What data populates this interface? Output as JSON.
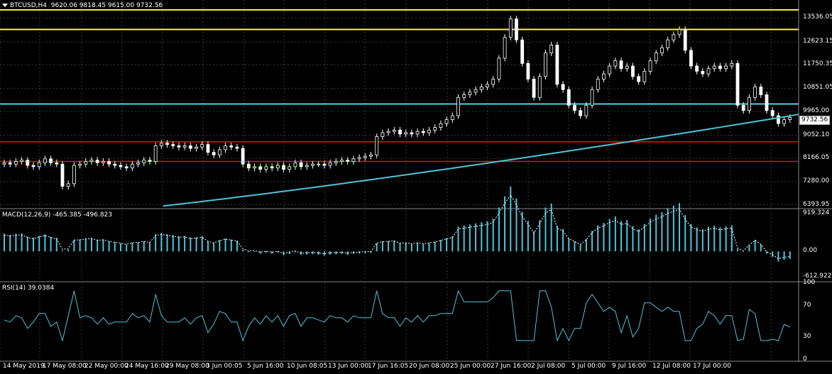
{
  "header": {
    "symbol_timeframe": "BTCUSD,H4",
    "ohlc": "9620.06 9818.45 9615.00 9732.56"
  },
  "price_axis": [
    "13536.05",
    "12623.15",
    "11750.35",
    "10851.05",
    "9965.00",
    "9052.10",
    "8166.05",
    "7280.00",
    "6393.95"
  ],
  "current_price": "9732.56",
  "macd": {
    "label": "MACD(12,26,9) -465.385 -496.823",
    "axis": [
      "919.324",
      "0.00",
      "-612.922"
    ]
  },
  "rsi": {
    "label": "RSI(14) 39.0384",
    "axis": [
      "100",
      "70",
      "30",
      "0"
    ]
  },
  "time_axis": [
    "14 May 2019",
    "17 May 08:00",
    "22 May 00:00",
    "24 May 16:00",
    "29 May 08:00",
    "3 Jun 00:05",
    "5 Jun 16:00",
    "10 Jun 08:05",
    "13 Jun 00:00",
    "17 Jun 16:05",
    "20 Jun 08:00",
    "25 Jun 00:00",
    "27 Jun 16:00",
    "2 Jul 08:00",
    "5 Jul 00:00",
    "9 Jul 16:00",
    "12 Jul 08:00",
    "17 Jul 00:00"
  ],
  "colors": {
    "background": "#000000",
    "grid": "#3a3a3a",
    "bull_candle": "#ffffff",
    "bear_candle": "#ffffff",
    "support_resistance_yellow": "#ffff00",
    "level_red": "#ff0000",
    "level_cyan": "#4fd1e6",
    "moving_average": "#4fc3d9",
    "macd_hist": "#4fc3d9",
    "macd_signal": "#ffffff",
    "rsi_line": "#4fc3d9"
  },
  "chart_data": {
    "type": "candlestick",
    "price_series_close": [
      8000,
      7950,
      8050,
      8100,
      7900,
      7850,
      8000,
      8150,
      8000,
      7950,
      7100,
      7200,
      7900,
      7950,
      8050,
      8100,
      8000,
      8050,
      7950,
      7900,
      7850,
      7800,
      7950,
      8000,
      8100,
      8050,
      8650,
      8750,
      8700,
      8650,
      8600,
      8650,
      8550,
      8600,
      8700,
      8400,
      8300,
      8500,
      8650,
      8600,
      8550,
      7950,
      7800,
      7850,
      7750,
      7850,
      7800,
      7900,
      7750,
      7850,
      8000,
      7850,
      7900,
      7950,
      7950,
      7900,
      8000,
      8050,
      8100,
      8050,
      8150,
      8200,
      8250,
      8300,
      9000,
      9150,
      9200,
      9250,
      9100,
      9150,
      9100,
      9200,
      9150,
      9250,
      9350,
      9500,
      9650,
      9800,
      10500,
      10600,
      10700,
      10800,
      10900,
      11000,
      11200,
      12000,
      12800,
      13500,
      12700,
      11800,
      11200,
      10500,
      11300,
      12200,
      12500,
      11000,
      10800,
      10200,
      10000,
      9800,
      10200,
      10800,
      11200,
      11400,
      11700,
      11900,
      11600,
      11700,
      11300,
      11100,
      11500,
      11900,
      12200,
      12400,
      12700,
      12900,
      13100,
      12300,
      11700,
      11500,
      11400,
      11600,
      11700,
      11600,
      11700,
      11800,
      10200,
      10000,
      10500,
      10900,
      10600,
      10000,
      9800,
      9500,
      9650,
      9732
    ],
    "ma_start": 6350,
    "ma_end": 9850,
    "levels": {
      "yellow": [
        13850,
        13100
      ],
      "cyan": [
        10250
      ],
      "red": [
        8800,
        8050
      ]
    },
    "price_range": [
      6300,
      13900
    ],
    "macd_range": [
      -700,
      1000
    ],
    "rsi_range": [
      0,
      100
    ]
  }
}
